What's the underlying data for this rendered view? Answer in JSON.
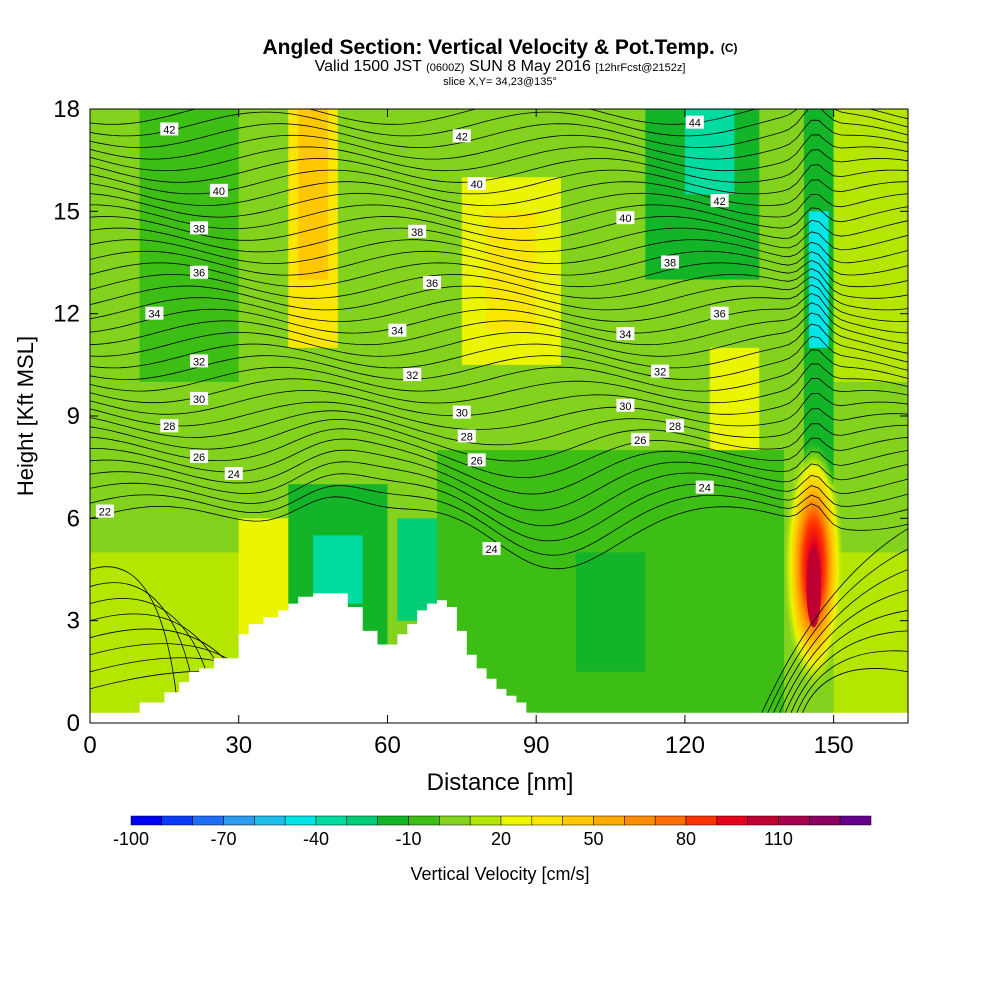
{
  "header": {
    "title": "Angled Section: Vertical Velocity & Pot.Temp.",
    "title_suffix": "(C)",
    "valid_a": "Valid 1500 JST",
    "valid_b": "(0600Z)",
    "valid_c": "SUN 8 May 2016",
    "valid_d": "[12hrFcst@2152z]",
    "slice": "slice X,Y= 34,23@135°"
  },
  "chart_data": {
    "type": "heatmap",
    "xlabel": "Distance [nm]",
    "ylabel": "Height [Kft MSL]",
    "xlim": [
      0,
      165
    ],
    "ylim": [
      0,
      18
    ],
    "x_ticks": [
      0,
      30,
      60,
      90,
      120,
      150
    ],
    "y_ticks": [
      0,
      3,
      6,
      9,
      12,
      15,
      18
    ],
    "colorbar": {
      "label": "Vertical Velocity [cm/s]",
      "tick_labels": [
        "-100",
        "-70",
        "-40",
        "-10",
        "20",
        "50",
        "80",
        "110"
      ],
      "min": -100,
      "step": 10,
      "colors": [
        "#0000f0",
        "#0a3cf5",
        "#1e6ef5",
        "#2d9bf0",
        "#1ebeeb",
        "#00e6e6",
        "#00dca0",
        "#00cd78",
        "#14b428",
        "#3cbe14",
        "#82d21e",
        "#b4e600",
        "#ebf500",
        "#fae600",
        "#ffc800",
        "#ffaa00",
        "#ff8c00",
        "#ff6e00",
        "#ff3200",
        "#e6001e",
        "#be0032",
        "#aa0050",
        "#8c0064",
        "#64008c"
      ]
    },
    "background_field": {
      "description_value_cm_s": 0,
      "cells": [
        {
          "x": [
            0,
            165
          ],
          "y": [
            0,
            18
          ],
          "w": 5
        },
        {
          "x": [
            0,
            40
          ],
          "y": [
            0,
            5
          ],
          "w": 15
        },
        {
          "x": [
            30,
            45
          ],
          "y": [
            2,
            6
          ],
          "w": 25
        },
        {
          "x": [
            40,
            60
          ],
          "y": [
            1,
            7
          ],
          "w": -15
        },
        {
          "x": [
            62,
            72
          ],
          "y": [
            3,
            6
          ],
          "w": -30
        },
        {
          "x": [
            45,
            55
          ],
          "y": [
            3.5,
            5.5
          ],
          "w": -35
        },
        {
          "x": [
            70,
            140
          ],
          "y": [
            0,
            8
          ],
          "w": -10
        },
        {
          "x": [
            98,
            112
          ],
          "y": [
            1.5,
            5
          ],
          "w": -20
        },
        {
          "x": [
            40,
            50
          ],
          "y": [
            11,
            18
          ],
          "w": 35
        },
        {
          "x": [
            42,
            48
          ],
          "y": [
            13,
            18
          ],
          "w": 40
        },
        {
          "x": [
            75,
            95
          ],
          "y": [
            10.5,
            16
          ],
          "w": 25
        },
        {
          "x": [
            80,
            90
          ],
          "y": [
            11.5,
            15
          ],
          "w": 35
        },
        {
          "x": [
            125,
            135
          ],
          "y": [
            8,
            11
          ],
          "w": 25
        },
        {
          "x": [
            10,
            30
          ],
          "y": [
            10,
            18
          ],
          "w": -10
        },
        {
          "x": [
            112,
            135
          ],
          "y": [
            13,
            18
          ],
          "w": -15
        },
        {
          "x": [
            120,
            130
          ],
          "y": [
            15.5,
            18
          ],
          "w": -35
        },
        {
          "x": [
            144,
            150
          ],
          "y": [
            7,
            18
          ],
          "w": -20
        },
        {
          "x": [
            145,
            149
          ],
          "y": [
            11,
            15
          ],
          "w": -45
        },
        {
          "x": [
            150,
            165
          ],
          "y": [
            10,
            18
          ],
          "w": 15
        },
        {
          "x": [
            150,
            165
          ],
          "y": [
            0,
            5
          ],
          "w": 10
        }
      ]
    },
    "updraft_core": {
      "x_center": 146,
      "y_center": 4.0,
      "peak_cm_s": 100
    },
    "terrain_profile": {
      "x": [
        10,
        15,
        18,
        20,
        22,
        25,
        30,
        32,
        35,
        38,
        40,
        42,
        45,
        50,
        52,
        55,
        58,
        60,
        62,
        64,
        66,
        68,
        70,
        72,
        74,
        76,
        78,
        80,
        82,
        84,
        86,
        88,
        90
      ],
      "y": [
        0.6,
        0.9,
        1.2,
        1.5,
        1.6,
        1.9,
        2.6,
        2.9,
        3.1,
        3.3,
        3.5,
        3.7,
        3.8,
        3.8,
        3.4,
        2.7,
        2.3,
        2.3,
        2.6,
        2.9,
        3.3,
        3.5,
        3.6,
        3.4,
        2.7,
        2.0,
        1.6,
        1.3,
        1.0,
        0.8,
        0.6,
        0.3,
        0.2
      ]
    },
    "isentrope_labels": [
      {
        "text": "42",
        "x": 16,
        "y": 17.4
      },
      {
        "text": "40",
        "x": 26,
        "y": 15.6
      },
      {
        "text": "38",
        "x": 22,
        "y": 14.5
      },
      {
        "text": "36",
        "x": 22,
        "y": 13.2
      },
      {
        "text": "34",
        "x": 13,
        "y": 12.0
      },
      {
        "text": "32",
        "x": 22,
        "y": 10.6
      },
      {
        "text": "30",
        "x": 22,
        "y": 9.5
      },
      {
        "text": "28",
        "x": 16,
        "y": 8.7
      },
      {
        "text": "26",
        "x": 22,
        "y": 7.8
      },
      {
        "text": "24",
        "x": 29,
        "y": 7.3
      },
      {
        "text": "22",
        "x": 3,
        "y": 6.2
      },
      {
        "text": "42",
        "x": 75,
        "y": 17.2
      },
      {
        "text": "40",
        "x": 78,
        "y": 15.8
      },
      {
        "text": "38",
        "x": 66,
        "y": 14.4
      },
      {
        "text": "36",
        "x": 69,
        "y": 12.9
      },
      {
        "text": "34",
        "x": 62,
        "y": 11.5
      },
      {
        "text": "32",
        "x": 65,
        "y": 10.2
      },
      {
        "text": "30",
        "x": 75,
        "y": 9.1
      },
      {
        "text": "28",
        "x": 76,
        "y": 8.4
      },
      {
        "text": "26",
        "x": 78,
        "y": 7.7
      },
      {
        "text": "24",
        "x": 81,
        "y": 5.1
      },
      {
        "text": "44",
        "x": 122,
        "y": 17.6
      },
      {
        "text": "42",
        "x": 127,
        "y": 15.3
      },
      {
        "text": "40",
        "x": 108,
        "y": 14.8
      },
      {
        "text": "38",
        "x": 117,
        "y": 13.5
      },
      {
        "text": "36",
        "x": 127,
        "y": 12.0
      },
      {
        "text": "34",
        "x": 108,
        "y": 11.4
      },
      {
        "text": "32",
        "x": 115,
        "y": 10.3
      },
      {
        "text": "30",
        "x": 108,
        "y": 9.3
      },
      {
        "text": "28",
        "x": 118,
        "y": 8.7
      },
      {
        "text": "26",
        "x": 111,
        "y": 8.3
      },
      {
        "text": "24",
        "x": 124,
        "y": 6.9
      }
    ]
  }
}
